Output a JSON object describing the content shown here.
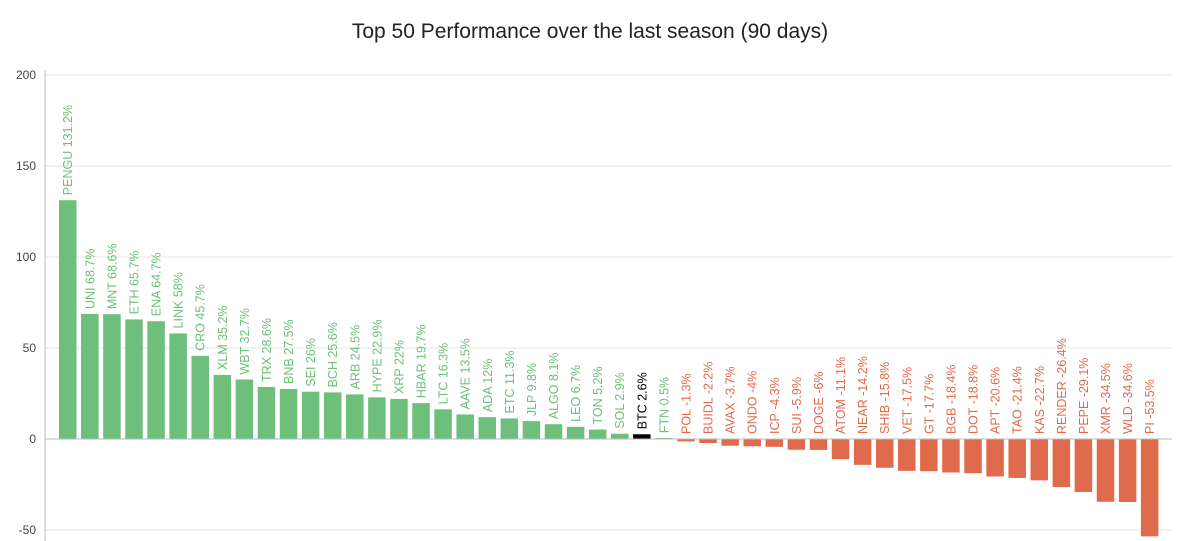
{
  "chart_data": {
    "type": "bar",
    "title": "Top 50 Performance over the last season (90 days)",
    "xlabel": "",
    "ylabel": "",
    "ylim": [
      -55,
      200
    ],
    "yticks": [
      200,
      150,
      100,
      50,
      0,
      -50
    ],
    "grid": true,
    "colors": {
      "positive": "#6dbf7b",
      "negative": "#e06b4c",
      "btc": "#000000",
      "axis_text": "#444444"
    },
    "categories": [
      "PENGU",
      "UNI",
      "MNT",
      "ETH",
      "ENA",
      "LINK",
      "CRO",
      "XLM",
      "WBT",
      "TRX",
      "BNB",
      "SEI",
      "BCH",
      "ARB",
      "HYPE",
      "XRP",
      "HBAR",
      "LTC",
      "AAVE",
      "ADA",
      "ETC",
      "JLP",
      "ALGO",
      "LEO",
      "TON",
      "SOL",
      "BTC",
      "FTN",
      "POL",
      "BUIDL",
      "AVAX",
      "ONDO",
      "ICP",
      "SUI",
      "DOGE",
      "ATOM",
      "NEAR",
      "SHIB",
      "VET",
      "GT",
      "BGB",
      "DOT",
      "APT",
      "TAO",
      "KAS",
      "RENDER",
      "PEPE",
      "XMR",
      "WLD",
      "PI"
    ],
    "values": [
      131.2,
      68.7,
      68.6,
      65.7,
      64.7,
      58,
      45.7,
      35.2,
      32.7,
      28.6,
      27.5,
      26,
      25.6,
      24.5,
      22.9,
      22,
      19.7,
      16.3,
      13.5,
      12,
      11.3,
      9.8,
      8.1,
      6.7,
      5.2,
      2.9,
      2.6,
      0.5,
      -1.3,
      -2.2,
      -3.7,
      -4,
      -4.3,
      -5.9,
      -6,
      -11.1,
      -14.2,
      -15.8,
      -17.5,
      -17.7,
      -18.4,
      -18.8,
      -20.6,
      -21.4,
      -22.7,
      -26.4,
      -29.1,
      -34.5,
      -34.6,
      -53.5
    ],
    "labels": [
      "PENGU 131.2%",
      "UNI 68.7%",
      "MNT 68.6%",
      "ETH 65.7%",
      "ENA 64.7%",
      "LINK 58%",
      "CRO 45.7%",
      "XLM 35.2%",
      "WBT 32.7%",
      "TRX 28.6%",
      "BNB 27.5%",
      "SEI 26%",
      "BCH 25.6%",
      "ARB 24.5%",
      "HYPE 22.9%",
      "XRP 22%",
      "HBAR 19.7%",
      "LTC 16.3%",
      "AAVE 13.5%",
      "ADA 12%",
      "ETC 11.3%",
      "JLP 9.8%",
      "ALGO 8.1%",
      "LEO 6.7%",
      "TON 5.2%",
      "SOL 2.9%",
      "BTC 2.6%",
      "FTN 0.5%",
      "POL -1.3%",
      "BUIDL -2.2%",
      "AVAX -3.7%",
      "ONDO -4%",
      "ICP -4.3%",
      "SUI -5.9%",
      "DOGE -6%",
      "ATOM -11.1%",
      "NEAR -14.2%",
      "SHIB -15.8%",
      "VET -17.5%",
      "GT -17.7%",
      "BGB -18.4%",
      "DOT -18.8%",
      "APT -20.6%",
      "TAO -21.4%",
      "KAS -22.7%",
      "RENDER -26.4%",
      "PEPE -29.1%",
      "XMR -34.5%",
      "WLD -34.6%",
      "PI -53.5%"
    ]
  }
}
